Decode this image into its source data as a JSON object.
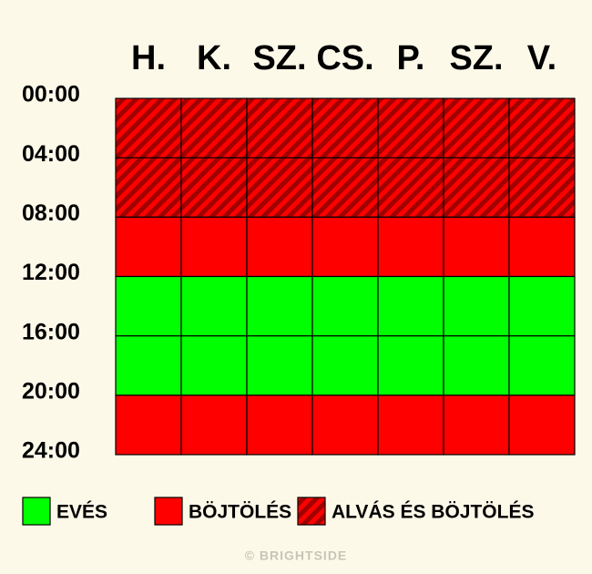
{
  "days": [
    "H.",
    "K.",
    "SZ.",
    "CS.",
    "P.",
    "SZ.",
    "V."
  ],
  "times": [
    "00:00",
    "04:00",
    "08:00",
    "12:00",
    "16:00",
    "20:00",
    "24:00"
  ],
  "legend": [
    {
      "label": "EVÉS",
      "color": "#00ff00"
    },
    {
      "label": "BÖJTÖLÉS",
      "color": "#ff0000"
    },
    {
      "label": "ALVÁS ÉS BÖJTÖLÉS",
      "color": "#ff0000",
      "stripe_color": "#a00000"
    }
  ],
  "schedule": [
    2,
    2,
    1,
    0,
    0,
    1
  ],
  "watermark": "© BRIGHTSIDE"
}
